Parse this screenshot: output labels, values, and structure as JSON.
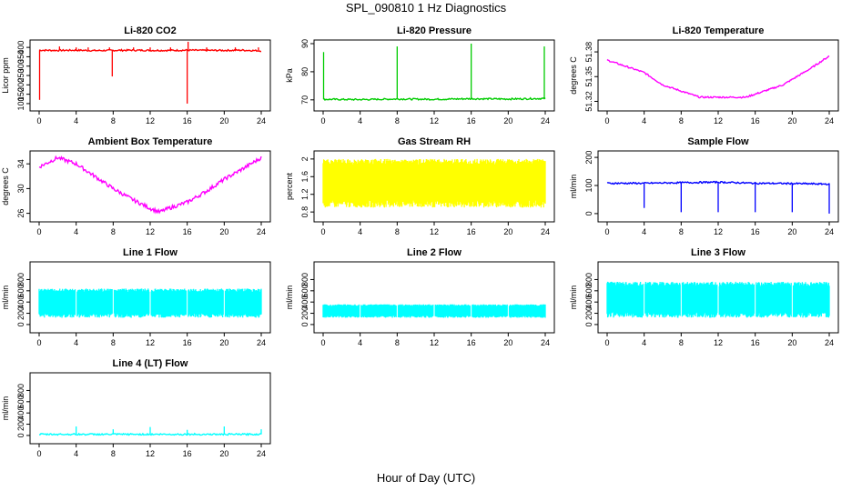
{
  "figure": {
    "title": "SPL_090810  1 Hz Diagnostics",
    "xlabel": "Hour of Day (UTC)"
  },
  "chart_data": [
    {
      "type": "line",
      "title": "Li-820 CO2",
      "ylabel": "Licor ppm",
      "color": "#ff0000",
      "xlim": [
        0,
        24
      ],
      "ylim": [
        90,
        420
      ],
      "yticks": [
        100,
        150,
        200,
        250,
        300,
        350,
        400
      ],
      "x": [
        0,
        2,
        4,
        6,
        8,
        10,
        12,
        14,
        16,
        18,
        20,
        22,
        24
      ],
      "y": [
        385,
        384,
        385,
        383,
        384,
        385,
        384,
        384,
        385,
        384,
        384,
        385,
        382
      ],
      "spikes": [
        {
          "x": 0.05,
          "y": 120
        },
        {
          "x": 2.2,
          "y": 405
        },
        {
          "x": 4.0,
          "y": 400
        },
        {
          "x": 5.3,
          "y": 400
        },
        {
          "x": 7.6,
          "y": 400
        },
        {
          "x": 7.9,
          "y": 245
        },
        {
          "x": 10.2,
          "y": 400
        },
        {
          "x": 12.0,
          "y": 400
        },
        {
          "x": 14.2,
          "y": 400
        },
        {
          "x": 16.0,
          "y": 100
        },
        {
          "x": 16.1,
          "y": 430
        },
        {
          "x": 18.1,
          "y": 400
        },
        {
          "x": 21.2,
          "y": 400
        },
        {
          "x": 23.7,
          "y": 400
        }
      ]
    },
    {
      "type": "line",
      "title": "Li-820 Pressure",
      "ylabel": "kPa",
      "color": "#00cc00",
      "xlim": [
        0,
        24
      ],
      "ylim": [
        68,
        90
      ],
      "yticks": [
        70,
        80,
        90
      ],
      "x": [
        0,
        4,
        8,
        12,
        16,
        20,
        24
      ],
      "y": [
        70.2,
        70.1,
        70.3,
        70.2,
        70.4,
        70.3,
        70.5
      ],
      "spikes": [
        {
          "x": 0.05,
          "y": 87
        },
        {
          "x": 8.0,
          "y": 89
        },
        {
          "x": 16.0,
          "y": 90
        },
        {
          "x": 23.9,
          "y": 89
        }
      ]
    },
    {
      "type": "line",
      "title": "Li-820 Temperature",
      "ylabel": "degrees C",
      "color": "#ff00ff",
      "xlim": [
        0,
        24
      ],
      "ylim": [
        51.315,
        51.39
      ],
      "yticks": [
        51.32,
        51.35,
        51.38
      ],
      "x": [
        0,
        4,
        6,
        10,
        15,
        19,
        22,
        24
      ],
      "y": [
        51.37,
        51.355,
        51.34,
        51.325,
        51.325,
        51.34,
        51.36,
        51.375
      ]
    },
    {
      "type": "line",
      "title": "Ambient Box Temperature",
      "ylabel": "degrees C",
      "color": "#ff00ff",
      "xlim": [
        0,
        24
      ],
      "ylim": [
        25.5,
        35.5
      ],
      "yticks": [
        26,
        30,
        34
      ],
      "x": [
        0,
        2,
        4,
        6,
        8,
        10,
        12,
        13,
        14,
        16,
        18,
        20,
        22,
        24
      ],
      "y": [
        33.5,
        35,
        34,
        32,
        30,
        28.3,
        26.8,
        26.2,
        26.8,
        27.8,
        29.5,
        31.5,
        33.2,
        35
      ]
    },
    {
      "type": "area",
      "title": "Gas Stream RH",
      "ylabel": "percent",
      "color": "#ffff00",
      "xlim": [
        0,
        24
      ],
      "ylim": [
        0.7,
        2.1
      ],
      "yticks": [
        0.8,
        1.2,
        1.6,
        2.0
      ],
      "band_low": 0.9,
      "band_high": 2.0
    },
    {
      "type": "line",
      "title": "Sample Flow",
      "ylabel": "ml/min",
      "color": "#0000ff",
      "xlim": [
        0,
        24
      ],
      "ylim": [
        -10,
        210
      ],
      "yticks": [
        0,
        100,
        200
      ],
      "x": [
        0,
        4,
        8,
        12,
        16,
        20,
        24
      ],
      "y": [
        108,
        108,
        110,
        112,
        108,
        107,
        105
      ],
      "dips": [
        {
          "x": 4.0,
          "y": 20
        },
        {
          "x": 8.0,
          "y": 5
        },
        {
          "x": 12.0,
          "y": 5
        },
        {
          "x": 16.0,
          "y": 5
        },
        {
          "x": 20.0,
          "y": 5
        },
        {
          "x": 24.0,
          "y": 0
        }
      ]
    },
    {
      "type": "area",
      "title": "Line 1 Flow",
      "ylabel": "ml/min",
      "color": "#00ffff",
      "xlim": [
        0,
        24
      ],
      "ylim": [
        -50,
        1050
      ],
      "yticks": [
        0,
        200,
        400,
        600,
        800
      ],
      "band_low": 120,
      "band_high": 640,
      "gaps": [
        4,
        8,
        12,
        16,
        20
      ]
    },
    {
      "type": "area",
      "title": "Line 2 Flow",
      "ylabel": "ml/min",
      "color": "#00ffff",
      "xlim": [
        0,
        24
      ],
      "ylim": [
        -50,
        1050
      ],
      "yticks": [
        0,
        200,
        400,
        600,
        800
      ],
      "band_low": 120,
      "band_high": 360,
      "gaps": [
        4,
        8,
        12,
        16,
        20
      ]
    },
    {
      "type": "area",
      "title": "Line 3 Flow",
      "ylabel": "ml/min",
      "color": "#00ffff",
      "xlim": [
        0,
        24
      ],
      "ylim": [
        -50,
        1050
      ],
      "yticks": [
        0,
        200,
        400,
        600,
        800
      ],
      "band_low": 120,
      "band_high": 760,
      "gaps": [
        4,
        8,
        12,
        16,
        20
      ]
    },
    {
      "type": "line",
      "title": "Line 4 (LT) Flow",
      "ylabel": "ml/min",
      "color": "#00ffff",
      "xlim": [
        0,
        24
      ],
      "ylim": [
        -50,
        1050
      ],
      "yticks": [
        0,
        200,
        400,
        600,
        800
      ],
      "x": [
        0,
        24
      ],
      "y": [
        20,
        20
      ],
      "spikes": [
        {
          "x": 4.0,
          "y": 160
        },
        {
          "x": 8.0,
          "y": 110
        },
        {
          "x": 12.0,
          "y": 150
        },
        {
          "x": 16.0,
          "y": 100
        },
        {
          "x": 20.0,
          "y": 160
        },
        {
          "x": 24.0,
          "y": 110
        }
      ]
    }
  ],
  "xticks": [
    0,
    4,
    8,
    12,
    16,
    20,
    24
  ]
}
